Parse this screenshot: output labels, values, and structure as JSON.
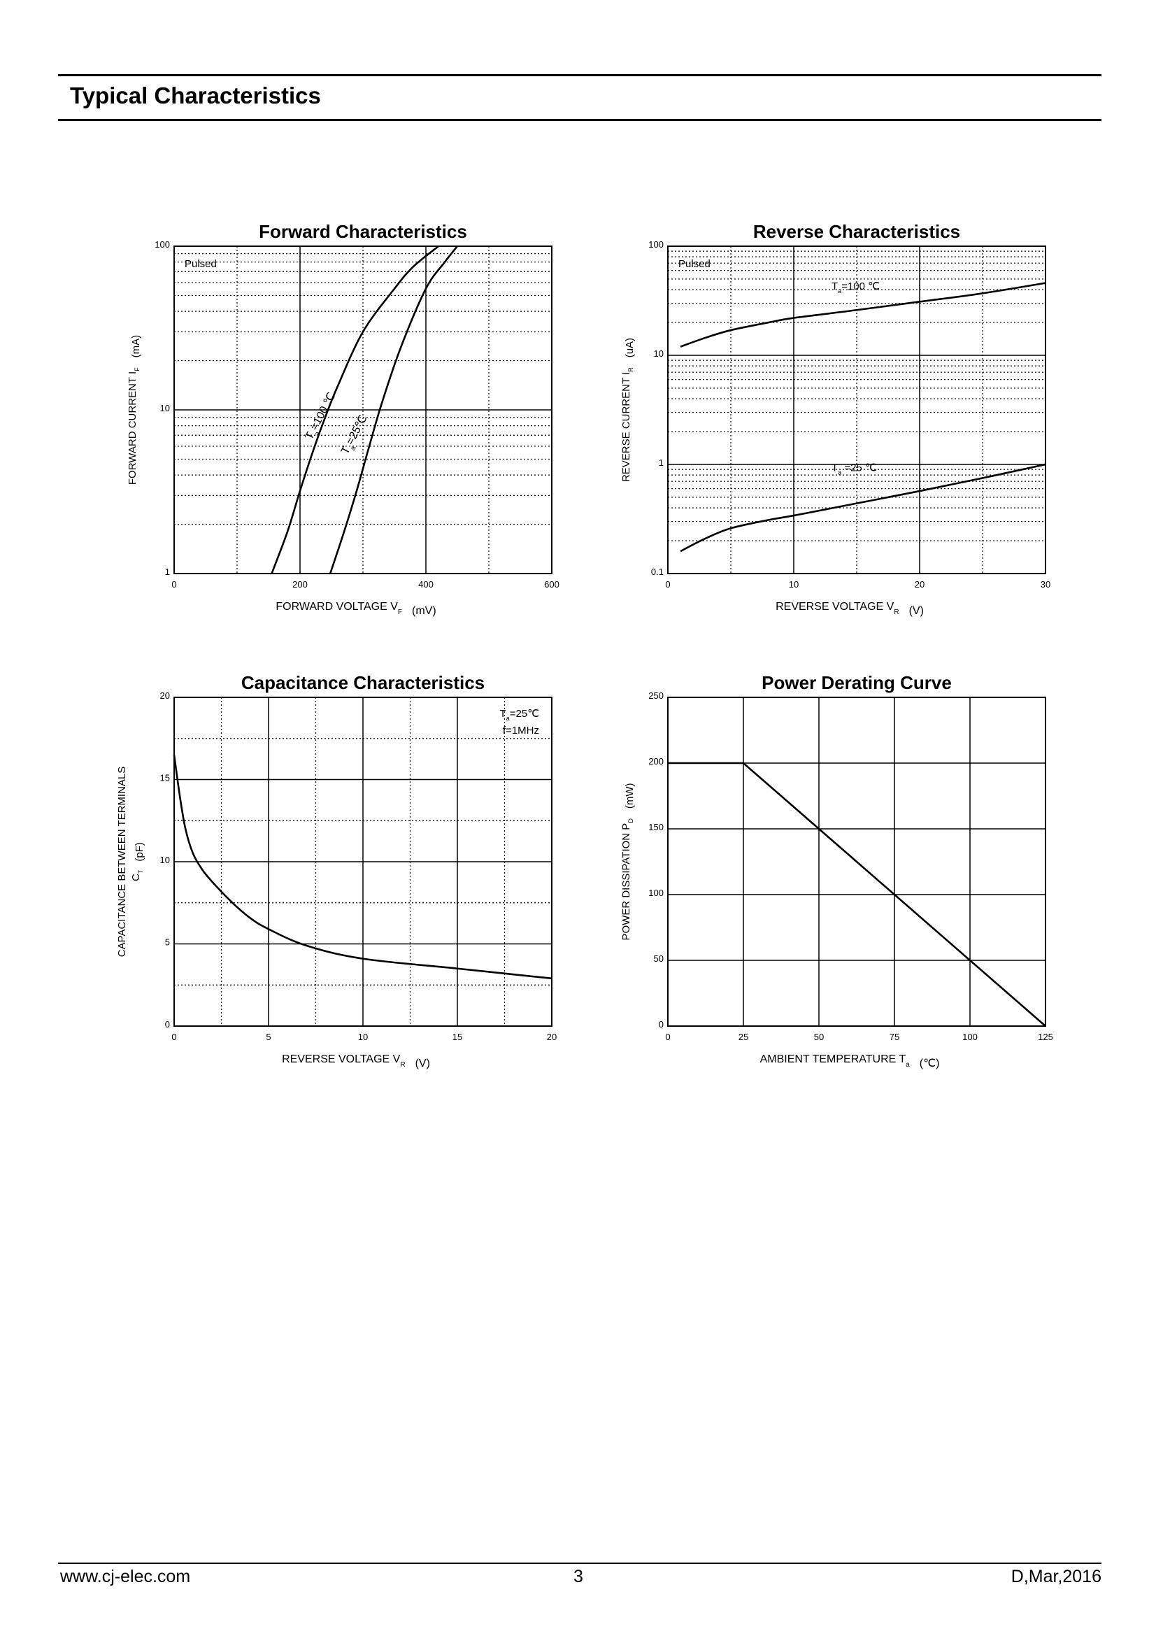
{
  "header": {
    "title": "Typical Characteristics"
  },
  "footer": {
    "url": "www.cj-elec.com",
    "page": "3",
    "revision": "D,Mar,2016"
  },
  "chart_data": [
    {
      "id": "forward",
      "type": "line",
      "title": "Forward    Characteristics",
      "xlabel": "FORWARD VOLTAGE    V",
      "xlabel_sub": "F",
      "xlabel_unit": "(mV)",
      "ylabel": "FORWARD CURRENT    I",
      "ylabel_sub": "F",
      "ylabel_unit": "(mA)",
      "x_scale": "linear",
      "xlim": [
        0,
        600
      ],
      "x_ticks": [
        0,
        200,
        400,
        600
      ],
      "x_minor": 100,
      "y_scale": "log",
      "ylim": [
        1,
        100
      ],
      "y_ticks": [
        1,
        10,
        100
      ],
      "annotation": "Pulsed",
      "series": [
        {
          "name": "Ta=100 ℃",
          "label_main": "T",
          "label_sub": "a",
          "label_rest": "=100 ℃",
          "x": [
            155,
            180,
            200,
            220,
            240,
            260,
            300,
            350,
            380,
            420
          ],
          "y": [
            1.0,
            1.8,
            3.2,
            5.5,
            9.0,
            14,
            30,
            55,
            75,
            100
          ]
        },
        {
          "name": "Ta=25℃",
          "label_main": "T",
          "label_sub": "a",
          "label_rest": "=25℃",
          "x": [
            248,
            270,
            290,
            310,
            330,
            360,
            400,
            430,
            450
          ],
          "y": [
            1.0,
            1.8,
            3.2,
            6.0,
            11,
            24,
            55,
            80,
            100
          ]
        }
      ]
    },
    {
      "id": "reverse",
      "type": "line",
      "title": "Reverse    Characteristics",
      "xlabel": "REVERSE VOLTAGE    V",
      "xlabel_sub": "R",
      "xlabel_unit": "(V)",
      "ylabel": "REVERSE CURRENT    I",
      "ylabel_sub": "R",
      "ylabel_unit": "(uA)",
      "x_scale": "linear",
      "xlim": [
        0,
        30
      ],
      "x_ticks": [
        0,
        10,
        20,
        30
      ],
      "x_minor": 5,
      "y_scale": "log",
      "ylim": [
        0.1,
        100
      ],
      "y_ticks": [
        0.1,
        1,
        10,
        100
      ],
      "annotation": "Pulsed",
      "series": [
        {
          "name": "Ta=100 ℃",
          "label_main": "T",
          "label_sub": "a",
          "label_rest": "=100 ℃",
          "x": [
            1,
            3,
            5,
            8,
            10,
            15,
            20,
            25,
            30
          ],
          "y": [
            12,
            14.5,
            17,
            20,
            22,
            26,
            31,
            37,
            46
          ]
        },
        {
          "name": "Ta =25 ℃",
          "label_main": "T",
          "label_sub": "a",
          "label_rest": " =25 ℃",
          "x": [
            1,
            3,
            5,
            8,
            10,
            15,
            20,
            25,
            30
          ],
          "y": [
            0.16,
            0.21,
            0.26,
            0.31,
            0.34,
            0.44,
            0.57,
            0.75,
            1.0
          ]
        }
      ]
    },
    {
      "id": "capacitance",
      "type": "line",
      "title": "Capacitance Characteristics",
      "xlabel": "REVERSE VOLTAGE    V",
      "xlabel_sub": "R",
      "xlabel_unit": "(V)",
      "ylabel": "CAPACITANCE BETWEEN TERMINALS",
      "ylabel2": "C",
      "ylabel2_sub": "T",
      "ylabel2_unit": "(pF)",
      "x_scale": "linear",
      "xlim": [
        0,
        20
      ],
      "x_ticks": [
        0,
        5,
        10,
        15,
        20
      ],
      "x_minor": 2.5,
      "y_scale": "linear",
      "ylim": [
        0,
        20
      ],
      "y_ticks": [
        0,
        5,
        10,
        15,
        20
      ],
      "y_minor": 2.5,
      "annotation": "T",
      "annotation_sub": "a",
      "annotation_rest": "=25℃",
      "annotation2": "f=1MHz",
      "series": [
        {
          "x": [
            0,
            0.3,
            0.6,
            1,
            1.5,
            2,
            3,
            4,
            5,
            7,
            10,
            15,
            20
          ],
          "y": [
            16.5,
            14,
            12,
            10.5,
            9.5,
            8.8,
            7.6,
            6.6,
            5.9,
            4.9,
            4.1,
            3.5,
            2.9
          ]
        }
      ]
    },
    {
      "id": "derating",
      "type": "line",
      "title": "Power Derating Curve",
      "xlabel": "AMBIENT TEMPERATURE    T",
      "xlabel_sub": "a",
      "xlabel_unit": "(℃)",
      "ylabel": "POWER DISSIPATION    P",
      "ylabel_sub": "D",
      "ylabel_unit": "(mW)",
      "x_scale": "linear",
      "xlim": [
        0,
        125
      ],
      "x_ticks": [
        0,
        25,
        50,
        75,
        100,
        125
      ],
      "y_scale": "linear",
      "ylim": [
        0,
        250
      ],
      "y_ticks": [
        0,
        50,
        100,
        150,
        200,
        250
      ],
      "series": [
        {
          "x": [
            0,
            25,
            125
          ],
          "y": [
            200,
            200,
            0
          ]
        }
      ]
    }
  ]
}
